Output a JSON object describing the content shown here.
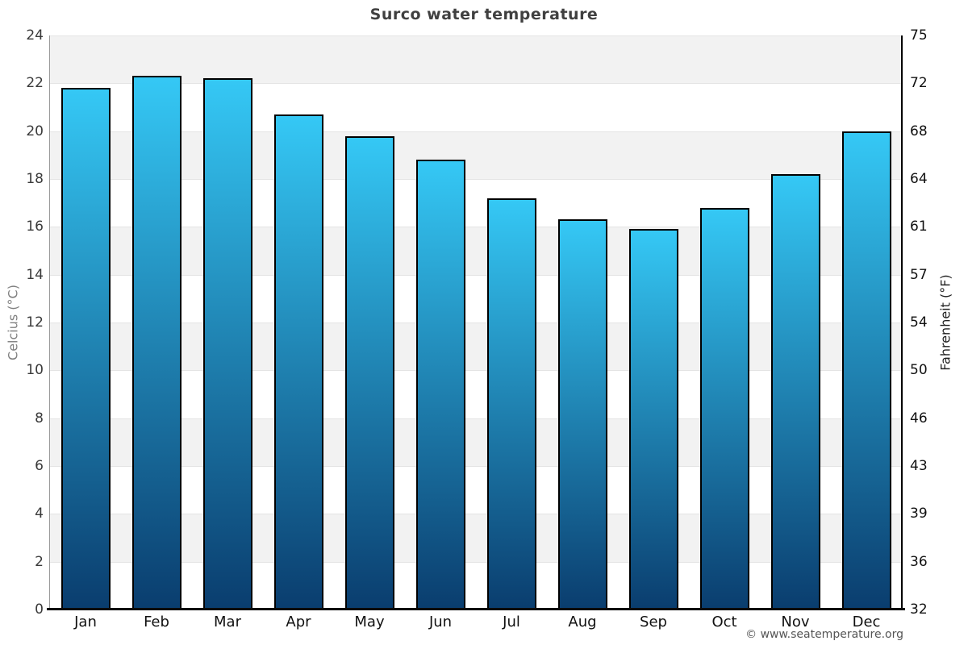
{
  "title": "Surco water temperature",
  "footer": "© www.seatemperature.org",
  "chart_data": {
    "type": "bar",
    "title": "Surco water temperature",
    "categories": [
      "Jan",
      "Feb",
      "Mar",
      "Apr",
      "May",
      "Jun",
      "Jul",
      "Aug",
      "Sep",
      "Oct",
      "Nov",
      "Dec"
    ],
    "values": [
      21.8,
      22.3,
      22.2,
      20.7,
      19.8,
      18.8,
      17.2,
      16.3,
      15.9,
      16.8,
      18.2,
      20.0
    ],
    "xlabel": "",
    "ylabel_left": "Celcius (°C)",
    "ylabel_right": "Fahrenheit (°F)",
    "ylim": [
      0,
      24
    ],
    "yticks_celsius": [
      24,
      22,
      20,
      18,
      16,
      14,
      12,
      10,
      8,
      6,
      4,
      2,
      0
    ],
    "yticks_fahrenheit": [
      75,
      72,
      68,
      64,
      61,
      57,
      54,
      50,
      46,
      43,
      39,
      36,
      32
    ],
    "grid": true,
    "legend": false,
    "colors": {
      "bar_gradient_top": "#35c8f5",
      "bar_gradient_bottom": "#0a3d6e",
      "bar_border": "#000000",
      "band_fill": "#f2f2f2",
      "gridline": "#e4e4e4",
      "title_text": "#404040",
      "axis_line_left": "#9a9a9a",
      "axis_line_right": "#000000",
      "axis_line_bottom": "#0a0a0a"
    }
  }
}
